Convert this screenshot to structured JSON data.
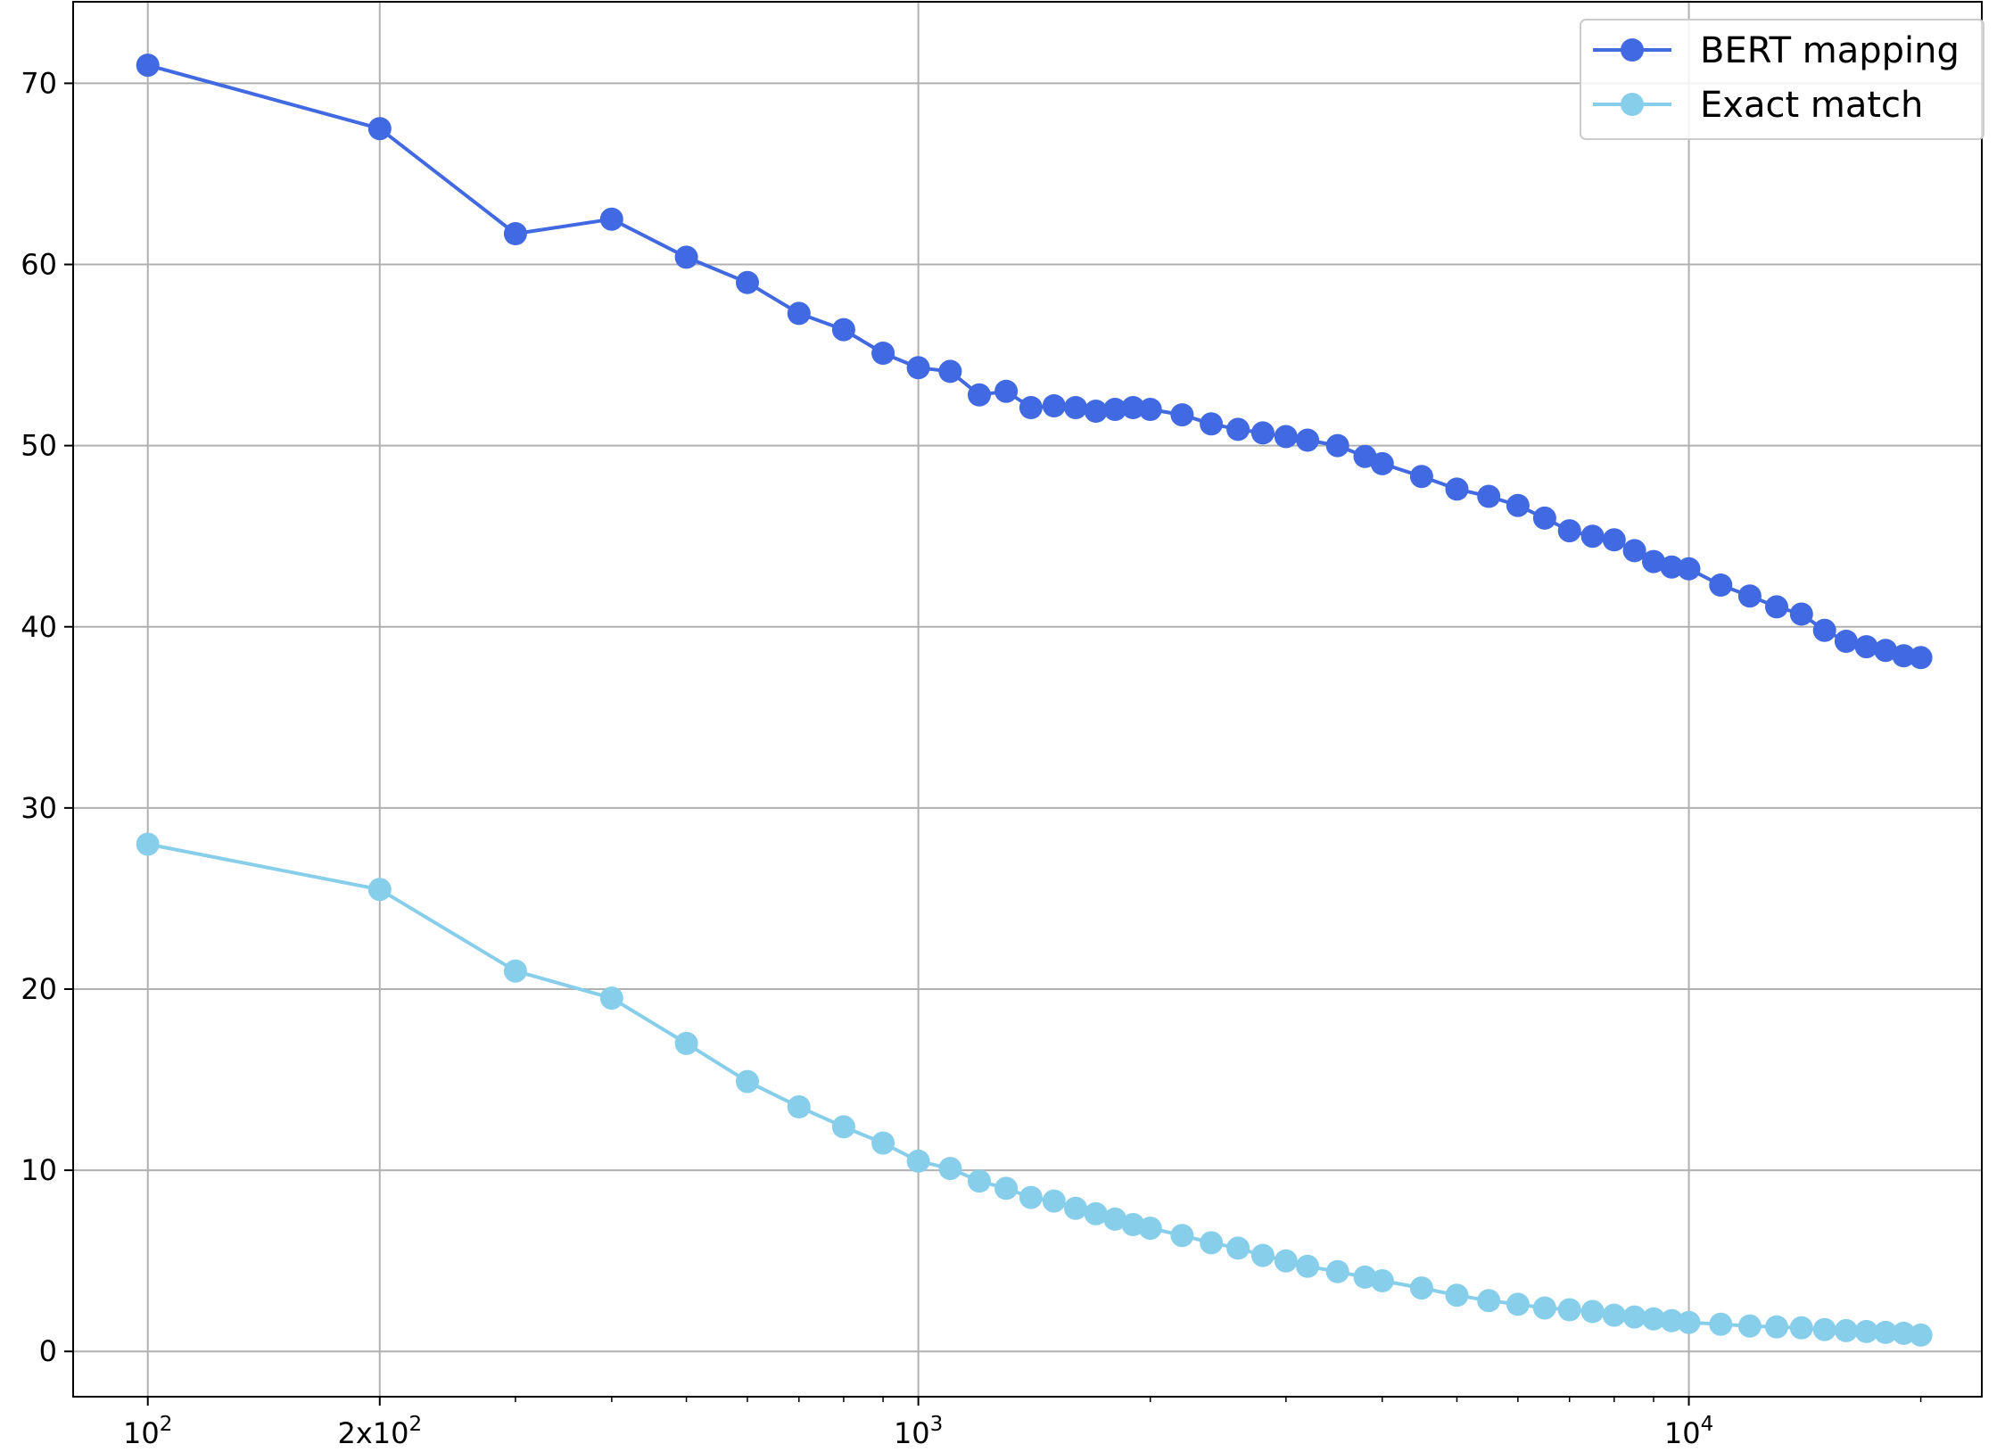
{
  "chart_data": {
    "type": "line",
    "title": "",
    "xlabel": "",
    "ylabel": "",
    "x_scale": "log",
    "xlim": [
      80,
      24000
    ],
    "ylim": [
      -2.5,
      74.5
    ],
    "grid": true,
    "legend_position": "top-right",
    "x_major_ticks": [
      100,
      200,
      1000,
      10000
    ],
    "x_minor_ticks": [
      300,
      400,
      500,
      600,
      700,
      800,
      900,
      2000,
      3000,
      4000,
      5000,
      6000,
      7000,
      8000,
      9000,
      20000
    ],
    "x_tick_labels": [
      {
        "base": "10",
        "exp": "2"
      },
      {
        "base": "2x10",
        "exp": "2"
      },
      {
        "base": "10",
        "exp": "3"
      },
      {
        "base": "10",
        "exp": "4"
      }
    ],
    "y_ticks": [
      0,
      10,
      20,
      30,
      40,
      50,
      60,
      70
    ],
    "y_tick_labels": [
      "0",
      "10",
      "20",
      "30",
      "40",
      "50",
      "60",
      "70"
    ],
    "series": [
      {
        "name": "BERT mapping",
        "color": "#4169e1",
        "marker": "circle",
        "x": [
          100,
          200,
          300,
          400,
          500,
          600,
          700,
          800,
          900,
          1000,
          1100,
          1200,
          1300,
          1400,
          1500,
          1600,
          1700,
          1800,
          1900,
          2000,
          2200,
          2400,
          2600,
          2800,
          3000,
          3200,
          3500,
          3800,
          4000,
          4500,
          5000,
          5500,
          6000,
          6500,
          7000,
          7500,
          8000,
          8500,
          9000,
          9500,
          10000,
          11000,
          12000,
          13000,
          14000,
          15000,
          16000,
          17000,
          18000,
          19000,
          20000
        ],
        "values": [
          71.0,
          67.5,
          61.7,
          62.5,
          60.4,
          59.0,
          57.3,
          56.4,
          55.1,
          54.3,
          54.1,
          52.8,
          53.0,
          52.1,
          52.2,
          52.1,
          51.9,
          52.0,
          52.1,
          52.0,
          51.7,
          51.2,
          50.9,
          50.7,
          50.5,
          50.3,
          50.0,
          49.4,
          49.0,
          48.3,
          47.6,
          47.2,
          46.7,
          46.0,
          45.3,
          45.0,
          44.8,
          44.2,
          43.6,
          43.3,
          43.2,
          42.3,
          41.7,
          41.1,
          40.7,
          39.8,
          39.2,
          38.9,
          38.7,
          38.4,
          38.3
        ]
      },
      {
        "name": "Exact match",
        "color": "#87ceeb",
        "marker": "circle",
        "x": [
          100,
          200,
          300,
          400,
          500,
          600,
          700,
          800,
          900,
          1000,
          1100,
          1200,
          1300,
          1400,
          1500,
          1600,
          1700,
          1800,
          1900,
          2000,
          2200,
          2400,
          2600,
          2800,
          3000,
          3200,
          3500,
          3800,
          4000,
          4500,
          5000,
          5500,
          6000,
          6500,
          7000,
          7500,
          8000,
          8500,
          9000,
          9500,
          10000,
          11000,
          12000,
          13000,
          14000,
          15000,
          16000,
          17000,
          18000,
          19000,
          20000
        ],
        "values": [
          28.0,
          25.5,
          21.0,
          19.5,
          17.0,
          14.9,
          13.5,
          12.4,
          11.5,
          10.5,
          10.1,
          9.4,
          9.0,
          8.5,
          8.3,
          7.9,
          7.6,
          7.3,
          7.0,
          6.8,
          6.4,
          6.0,
          5.7,
          5.3,
          5.0,
          4.7,
          4.4,
          4.1,
          3.9,
          3.5,
          3.1,
          2.8,
          2.6,
          2.4,
          2.3,
          2.2,
          2.0,
          1.9,
          1.8,
          1.7,
          1.6,
          1.5,
          1.4,
          1.35,
          1.3,
          1.2,
          1.15,
          1.1,
          1.05,
          1.0,
          0.9
        ]
      }
    ]
  }
}
